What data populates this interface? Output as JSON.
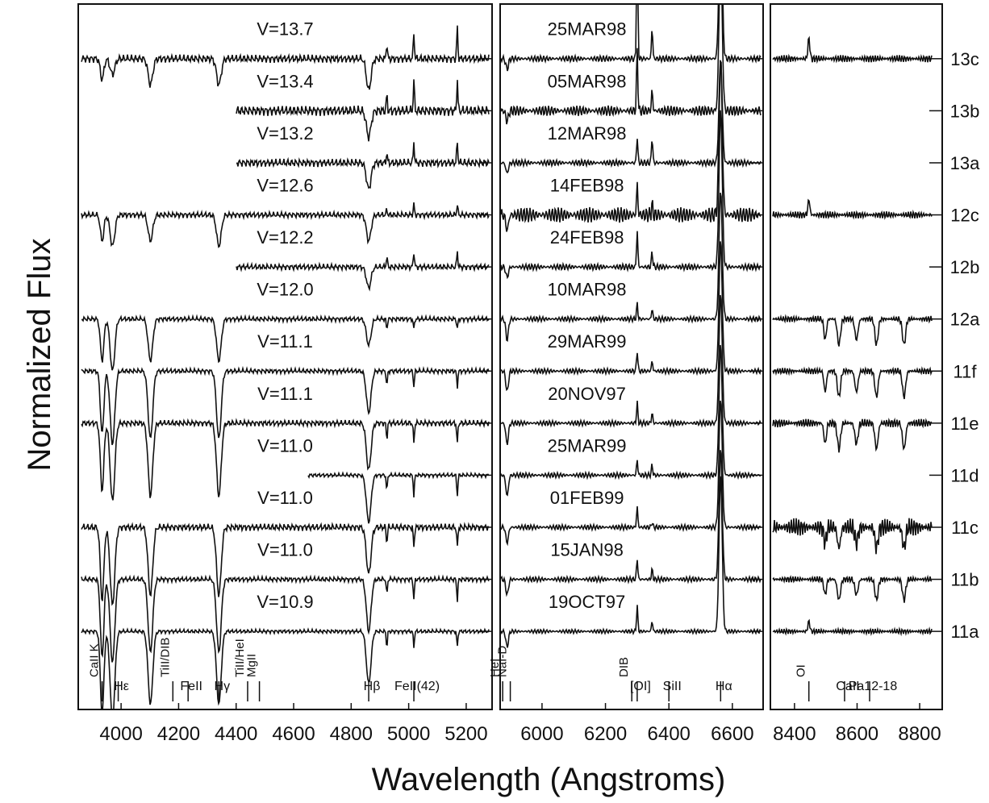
{
  "chart_data": {
    "type": "spectra",
    "x_label": "Wavelength (Angstroms)",
    "y_label": "Normalized Flux",
    "ylim": [
      -1.5,
      12.05
    ],
    "yticks": [
      {
        "value": 11,
        "label": "13c"
      },
      {
        "value": 10,
        "label": "13b"
      },
      {
        "value": 9,
        "label": "13a"
      },
      {
        "value": 8,
        "label": "12c"
      },
      {
        "value": 7,
        "label": "12b"
      },
      {
        "value": 6,
        "label": "12a"
      },
      {
        "value": 5,
        "label": "11f"
      },
      {
        "value": 4,
        "label": "11e"
      },
      {
        "value": 3,
        "label": "11d"
      },
      {
        "value": 2,
        "label": "11c"
      },
      {
        "value": 1,
        "label": "11b"
      },
      {
        "value": 0,
        "label": "11a"
      }
    ],
    "magnitudes": [
      "V=13.7",
      "V=13.4",
      "V=13.2",
      "V=12.6",
      "V=12.2",
      "V=12.0",
      "V=11.1",
      "V=11.1",
      "V=11.0",
      "V=11.0",
      "V=11.0",
      "V=10.9"
    ],
    "dates": [
      "25MAR98",
      "05MAR98",
      "12MAR98",
      "14FEB98",
      "24FEB98",
      "10MAR98",
      "29MAR99",
      "20NOV97",
      "25MAR99",
      "01FEB99",
      "15JAN98",
      "19OCT97"
    ],
    "panels": [
      {
        "xlim": [
          3851,
          5290
        ],
        "xticks": [
          4000,
          4200,
          4400,
          4600,
          4800,
          5000,
          5200
        ],
        "coverage": [
          [
            3860,
            5280
          ],
          [
            4400,
            5280
          ],
          [
            4400,
            5280
          ],
          [
            3860,
            5280
          ],
          [
            4400,
            5280
          ],
          [
            3860,
            5280
          ],
          [
            3860,
            5280
          ],
          [
            3860,
            5280
          ],
          [
            4650,
            5280
          ],
          [
            3860,
            5280
          ],
          [
            3860,
            5280
          ],
          [
            3860,
            5280
          ]
        ],
        "noise": [
          0.08,
          0.1,
          0.08,
          0.06,
          0.06,
          0.05,
          0.05,
          0.06,
          0.04,
          0.07,
          0.05,
          0.04
        ],
        "lines": [
          {
            "wavelength": 3934,
            "width": 6,
            "depths": [
              0.4,
              0,
              0,
              0.5,
              0,
              0.8,
              1.2,
              1.3,
              0,
              1.4,
              1.5,
              1.6
            ]
          },
          {
            "wavelength": 3970,
            "width": 8,
            "depths": [
              0.3,
              0,
              0,
              0.6,
              0,
              1.0,
              1.4,
              1.5,
              0,
              1.5,
              1.6,
              1.7
            ]
          },
          {
            "wavelength": 4102,
            "width": 8,
            "depths": [
              0.5,
              0,
              0,
              0.5,
              0,
              0.8,
              1.3,
              1.4,
              0,
              1.3,
              1.4,
              1.4
            ]
          },
          {
            "wavelength": 4340,
            "width": 8,
            "depths": [
              0.5,
              0,
              0,
              0.6,
              0,
              0.8,
              1.3,
              1.4,
              0,
              1.3,
              1.4,
              1.4
            ]
          },
          {
            "wavelength": 4861,
            "width": 8,
            "depths": [
              0.6,
              0.5,
              0.5,
              0.5,
              0.4,
              0.5,
              0.8,
              0.9,
              0.9,
              0.9,
              1.0,
              1.0
            ]
          },
          {
            "wavelength": 4924,
            "width": 2,
            "depths": [
              -0.3,
              -0.3,
              -0.2,
              -0.1,
              -0.2,
              0.2,
              0.3,
              0.3,
              0.3,
              0.3,
              0.3,
              0.3
            ]
          },
          {
            "wavelength": 5018,
            "width": 2,
            "depths": [
              -0.5,
              -0.6,
              -0.4,
              -0.2,
              -0.3,
              0.2,
              0.3,
              0.4,
              0.4,
              0.4,
              0.4,
              0.3
            ]
          },
          {
            "wavelength": 5169,
            "width": 2,
            "depths": [
              -0.6,
              -0.6,
              -0.4,
              -0.2,
              -0.3,
              0.2,
              0.3,
              0.4,
              0.4,
              0.4,
              0.4,
              0.3
            ]
          }
        ],
        "line_ids": [
          {
            "label": "CaII K",
            "x": 3934,
            "vertical": true
          },
          {
            "label": "Hε",
            "x": 3990,
            "vertical": false
          },
          {
            "label": "TiII/DIB",
            "x": 4180,
            "vertical": true
          },
          {
            "label": "FeII",
            "x": 4233,
            "vertical": false
          },
          {
            "label": "Hγ",
            "x": 4340,
            "vertical": false
          },
          {
            "label": "TiII/HeI",
            "x": 4440,
            "vertical": true
          },
          {
            "label": "MgII",
            "x": 4481,
            "vertical": true
          },
          {
            "label": "Hβ",
            "x": 4861,
            "vertical": false
          },
          {
            "label": "FeII(42)",
            "x": 5018,
            "vertical": false
          }
        ]
      },
      {
        "xlim": [
          5868,
          6697
        ],
        "xticks": [
          6000,
          6200,
          6400,
          6600
        ],
        "coverage": [
          [
            5870,
            6690
          ],
          [
            5870,
            6690
          ],
          [
            5870,
            6690
          ],
          [
            5870,
            6690
          ],
          [
            5870,
            6690
          ],
          [
            5870,
            6690
          ],
          [
            5870,
            6690
          ],
          [
            5870,
            6690
          ],
          [
            5870,
            6690
          ],
          [
            5870,
            6690
          ],
          [
            5870,
            6690
          ],
          [
            5870,
            6690
          ]
        ],
        "noise": [
          0.06,
          0.1,
          0.06,
          0.15,
          0.06,
          0.05,
          0.05,
          0.05,
          0.05,
          0.05,
          0.05,
          0.04
        ],
        "lines": [
          {
            "wavelength": 5890,
            "width": 4,
            "depths": [
              0.2,
              0.2,
              0.2,
              0.3,
              0.2,
              0.4,
              0.4,
              0.4,
              0.4,
              0.3,
              0.3,
              0.3
            ]
          },
          {
            "wavelength": 6300,
            "width": 2,
            "depths": [
              -2.5,
              -1.2,
              -0.5,
              -0.6,
              -0.7,
              -0.3,
              -0.4,
              -0.4,
              -0.3,
              -0.4,
              -0.4,
              -0.5
            ]
          },
          {
            "wavelength": 6347,
            "width": 2,
            "depths": [
              -0.6,
              -0.4,
              -0.5,
              -0.2,
              -0.3,
              -0.2,
              -0.2,
              -0.2,
              -0.2,
              -0.1,
              -0.2,
              -0.2
            ]
          },
          {
            "wavelength": 6563,
            "width": 5,
            "depths": [
              -3,
              -3,
              -2,
              -3,
              -3,
              -2.5,
              -2.5,
              -2.5,
              -2.5,
              -2.5,
              -2.5,
              -3
            ]
          }
        ],
        "line_ids": [
          {
            "label": "HeI",
            "x": 5876,
            "vertical": true
          },
          {
            "label": "NaI-D",
            "x": 5900,
            "vertical": true
          },
          {
            "label": "DIB",
            "x": 6283,
            "vertical": true
          },
          {
            "label": "[OI]",
            "x": 6300,
            "vertical": false
          },
          {
            "label": "SiII",
            "x": 6400,
            "vertical": false
          },
          {
            "label": "Hα",
            "x": 6563,
            "vertical": false
          }
        ]
      },
      {
        "xlim": [
          8323,
          8872
        ],
        "xticks": [
          8400,
          8600,
          8800
        ],
        "coverage": [
          [
            8330,
            8840
          ],
          null,
          null,
          [
            8330,
            8840
          ],
          null,
          [
            8330,
            8840
          ],
          [
            8330,
            8840
          ],
          [
            8330,
            8840
          ],
          null,
          [
            8330,
            8840
          ],
          [
            8330,
            8840
          ],
          [
            8330,
            8840
          ]
        ],
        "noise": [
          0.07,
          0,
          0,
          0.07,
          0,
          0.06,
          0.06,
          0.08,
          0,
          0.18,
          0.06,
          0.05
        ],
        "lines": [
          {
            "wavelength": 8446,
            "width": 3,
            "depths": [
              -0.4,
              0,
              0,
              -0.3,
              0,
              0,
              0,
              0,
              0,
              0,
              0,
              -0.2
            ]
          },
          {
            "wavelength": 8498,
            "width": 4,
            "depths": [
              0,
              0,
              0,
              0,
              0,
              0.4,
              0.4,
              0.4,
              0,
              0.3,
              0.3,
              0
            ]
          },
          {
            "wavelength": 8542,
            "width": 5,
            "depths": [
              0,
              0,
              0,
              0,
              0,
              0.5,
              0.5,
              0.5,
              0,
              0.4,
              0.4,
              0
            ]
          },
          {
            "wavelength": 8598,
            "width": 5,
            "depths": [
              0,
              0,
              0,
              0,
              0,
              0.4,
              0.4,
              0.4,
              0,
              0.3,
              0.3,
              0
            ]
          },
          {
            "wavelength": 8662,
            "width": 5,
            "depths": [
              0,
              0,
              0,
              0,
              0,
              0.5,
              0.5,
              0.5,
              0,
              0.4,
              0.4,
              0
            ]
          },
          {
            "wavelength": 8750,
            "width": 5,
            "depths": [
              0,
              0,
              0,
              0,
              0,
              0.5,
              0.5,
              0.5,
              0,
              0.4,
              0.4,
              0
            ]
          }
        ],
        "line_ids": [
          {
            "label": "OI",
            "x": 8446,
            "vertical": true
          },
          {
            "label": "CaII",
            "x": 8560,
            "vertical": false
          },
          {
            "label": "Pa12-18",
            "x": 8640,
            "vertical": false
          }
        ]
      }
    ]
  }
}
